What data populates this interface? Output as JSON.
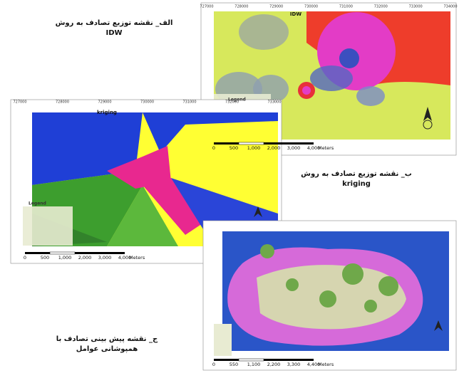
{
  "panels": [
    {
      "caption": [
        "الف_ نقشه توزیع تصادف به روش",
        "IDW"
      ],
      "title": "IDW",
      "legend": "Legend",
      "coords": [
        "727000",
        "728000",
        "729000",
        "730000",
        "731000",
        "732000",
        "733000",
        "734000"
      ],
      "scale": [
        "0",
        "500",
        "1,000",
        "2,000",
        "3,000",
        "4,000"
      ],
      "unit": "Meters"
    },
    {
      "caption": [
        "ب_ نقشه توزیع تصادف به روش",
        "kriging"
      ],
      "title": "kriging",
      "legend": "Legend",
      "coords": [
        "727000",
        "728000",
        "729000",
        "730000",
        "731000",
        "732000",
        "733000"
      ],
      "scale": [
        "0",
        "500",
        "1,000",
        "2,000",
        "3,000",
        "4,000"
      ],
      "unit": "Meters"
    },
    {
      "caption": [
        "ج_ نقشه پیش بینی تصادف با",
        "همپوشانی عوامل"
      ],
      "scale": [
        "0",
        "550",
        "1,100",
        "2,200",
        "3,300",
        "4,400"
      ],
      "unit": "Meters"
    }
  ]
}
